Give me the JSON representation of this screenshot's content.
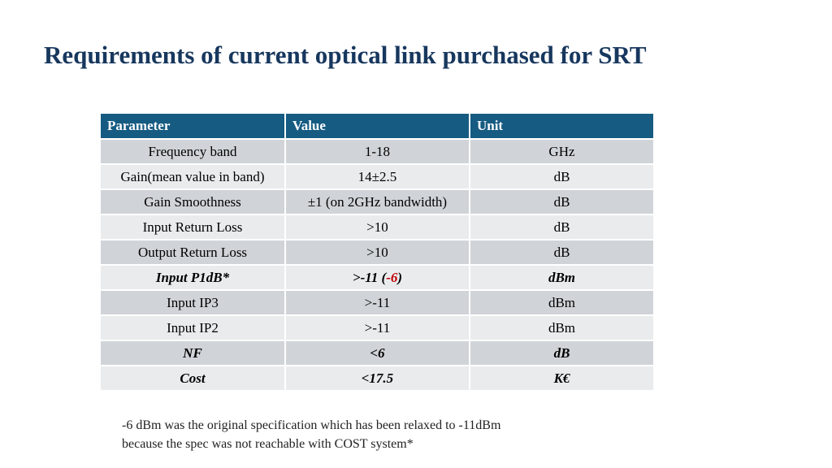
{
  "title": "Requirements of current optical link purchased for SRT",
  "table": {
    "headers": [
      "Parameter",
      "Value",
      "Unit"
    ],
    "rows": [
      {
        "parameter": "Frequency band",
        "value": "1-18",
        "unit": "GHz"
      },
      {
        "parameter": "Gain(mean value in band)",
        "value": "14±2.5",
        "unit": "dB"
      },
      {
        "parameter": "Gain Smoothness",
        "value": "±1 (on 2GHz bandwidth)",
        "unit": "dB"
      },
      {
        "parameter": "Input Return Loss",
        "value": ">10",
        "unit": "dB"
      },
      {
        "parameter": "Output Return Loss",
        "value": ">10",
        "unit": "dB"
      },
      {
        "parameter": "Input P1dB*",
        "value_pre": ">-11 (",
        "value_red": "-6",
        "value_post": ")",
        "unit": "dBm"
      },
      {
        "parameter": "Input IP3",
        "value": ">-11",
        "unit": "dBm"
      },
      {
        "parameter": "Input IP2",
        "value": ">-11",
        "unit": "dBm"
      },
      {
        "parameter": "NF",
        "value": "<6",
        "unit": "dB"
      },
      {
        "parameter": "Cost",
        "value": "<17.5",
        "unit": "K€"
      }
    ]
  },
  "footnote": {
    "line1": "-6 dBm was the original specification which has been relaxed to -11dBm",
    "line2": "because the spec was not reachable with COST system*"
  },
  "colors": {
    "title": "#17375e",
    "header_bg": "#165b82",
    "row_dark": "#d0d4d8",
    "row_light": "#e9ebed",
    "highlight_red": "#c00000"
  }
}
